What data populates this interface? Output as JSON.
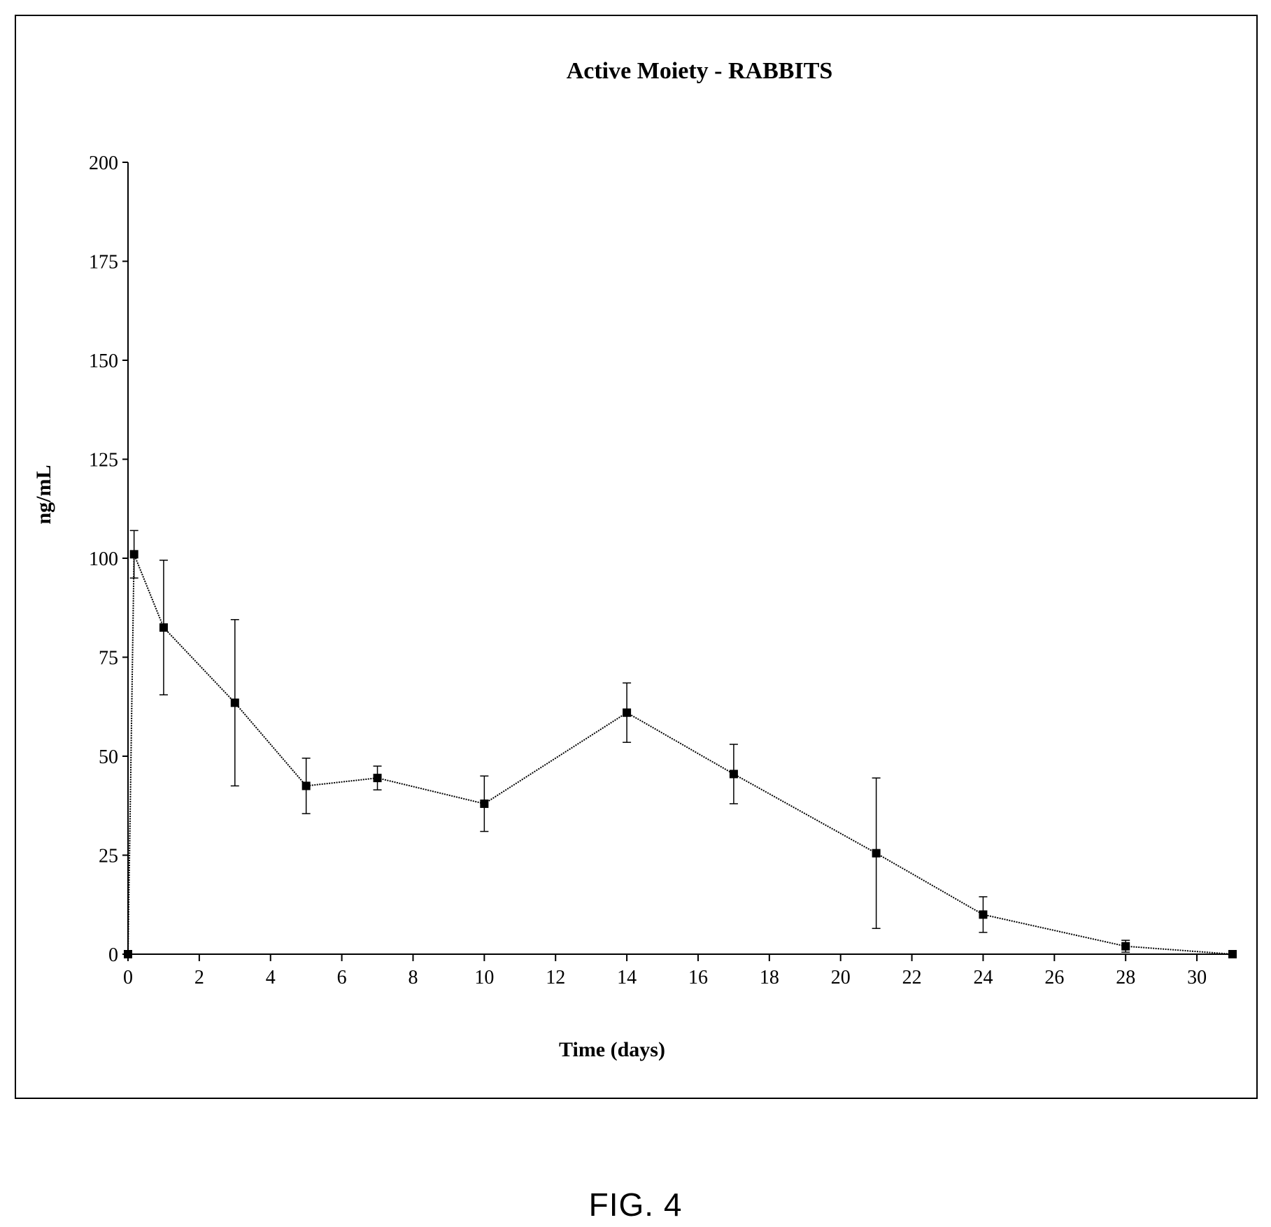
{
  "figure_label": "FIG. 4",
  "chart_data": {
    "type": "line",
    "title": "Active Moiety - RABBITS",
    "xlabel": "Time (days)",
    "ylabel": "ng/mL",
    "xlim": [
      0,
      31
    ],
    "ylim": [
      0,
      200
    ],
    "x_ticks": [
      0,
      2,
      4,
      6,
      8,
      10,
      12,
      14,
      16,
      18,
      20,
      22,
      24,
      26,
      28,
      30
    ],
    "y_ticks": [
      0,
      25,
      50,
      75,
      100,
      125,
      150,
      175,
      200
    ],
    "grid": false,
    "legend": "none",
    "marker": "square",
    "series": [
      {
        "x": [
          0,
          0.17,
          1,
          3,
          5,
          7,
          10,
          14,
          17,
          21,
          24,
          28,
          31
        ],
        "y": [
          0,
          101,
          82.5,
          63.5,
          42.5,
          44.5,
          38,
          61,
          45.5,
          25.5,
          10,
          2,
          0
        ],
        "error": [
          0,
          6,
          17,
          21,
          7,
          3,
          7,
          7.5,
          7.5,
          19,
          4.5,
          1.5,
          0
        ]
      }
    ],
    "colors": {
      "line": "#000000",
      "marker": "#000000"
    }
  }
}
